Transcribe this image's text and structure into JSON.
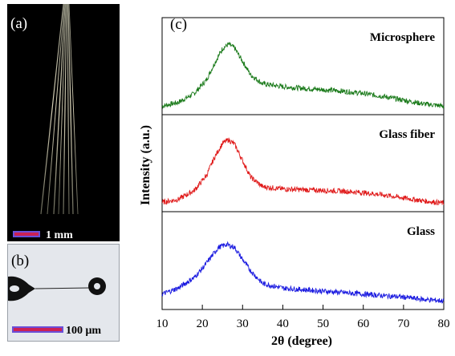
{
  "panel_a": {
    "label": "(a)",
    "scale_bar_label": "1 mm",
    "scale_bar_color": "#cc2255"
  },
  "panel_b": {
    "label": "(b)",
    "scale_bar_label": "100 μm",
    "scale_bar_color": "#cc2255"
  },
  "chart_data": {
    "type": "line",
    "panel_label": "(c)",
    "xlabel": "2θ (degree)",
    "ylabel": "Intensity (a.u.)",
    "xlim": [
      10,
      80
    ],
    "x_ticks": [
      10,
      20,
      30,
      40,
      50,
      60,
      70,
      80
    ],
    "grid": false,
    "legend": "none",
    "series": [
      {
        "name": "Microsphere",
        "color": "#1a7a1a",
        "x": [
          10,
          14,
          18,
          21,
          23,
          25,
          26.5,
          28,
          30,
          32,
          35,
          40,
          45,
          50,
          55,
          60,
          65,
          70,
          75,
          80
        ],
        "y": [
          0.05,
          0.1,
          0.22,
          0.4,
          0.62,
          0.82,
          0.88,
          0.83,
          0.65,
          0.47,
          0.35,
          0.31,
          0.29,
          0.27,
          0.25,
          0.22,
          0.18,
          0.13,
          0.08,
          0.05
        ]
      },
      {
        "name": "Glass fiber",
        "color": "#e01a1a",
        "x": [
          10,
          14,
          18,
          21,
          23,
          25,
          26.5,
          28,
          30,
          32,
          35,
          40,
          45,
          50,
          55,
          60,
          65,
          70,
          75,
          80
        ],
        "y": [
          0.06,
          0.1,
          0.22,
          0.42,
          0.66,
          0.85,
          0.9,
          0.84,
          0.62,
          0.4,
          0.27,
          0.24,
          0.23,
          0.22,
          0.21,
          0.19,
          0.16,
          0.12,
          0.08,
          0.05
        ]
      },
      {
        "name": "Glass",
        "color": "#1a1ae0",
        "x": [
          10,
          14,
          18,
          20,
          22,
          24,
          26,
          28,
          30,
          32,
          35,
          40,
          45,
          50,
          55,
          60,
          65,
          70,
          75,
          80
        ],
        "y": [
          0.14,
          0.22,
          0.36,
          0.48,
          0.62,
          0.76,
          0.8,
          0.76,
          0.6,
          0.45,
          0.28,
          0.22,
          0.2,
          0.18,
          0.16,
          0.14,
          0.12,
          0.1,
          0.07,
          0.05
        ]
      }
    ]
  }
}
